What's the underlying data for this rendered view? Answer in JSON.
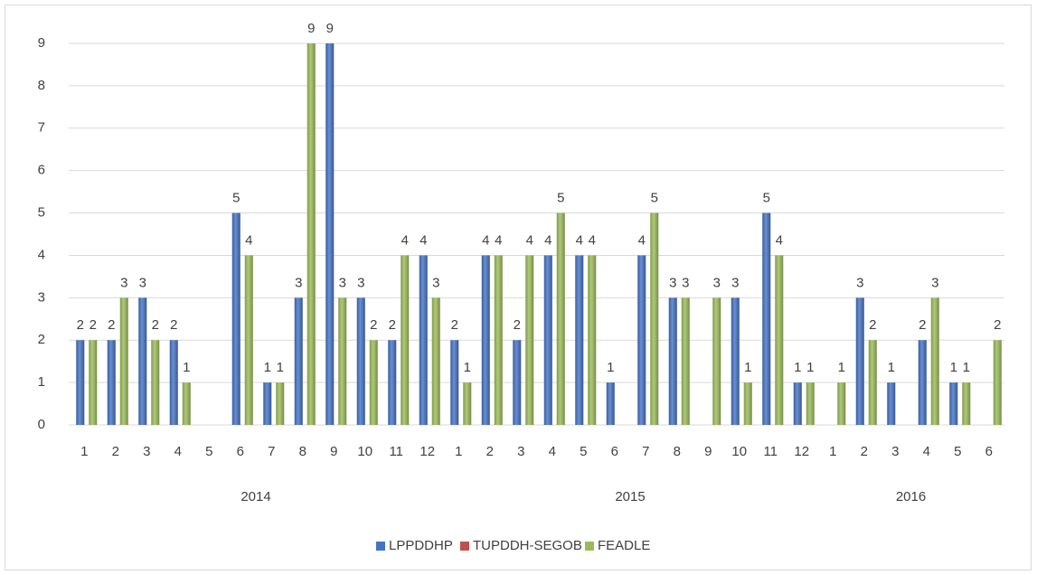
{
  "chart_data": {
    "type": "bar",
    "categories": [
      "1",
      "2",
      "3",
      "4",
      "5",
      "6",
      "7",
      "8",
      "9",
      "10",
      "11",
      "12",
      "1",
      "2",
      "3",
      "4",
      "5",
      "6",
      "7",
      "8",
      "9",
      "10",
      "11",
      "12",
      "1",
      "2",
      "3",
      "4",
      "5",
      "6"
    ],
    "x_groups": [
      "2014",
      "2015",
      "2016"
    ],
    "series": [
      {
        "name": "LPPDDHP",
        "color": "#4472c4",
        "values": [
          2,
          2,
          3,
          2,
          null,
          5,
          1,
          3,
          9,
          3,
          2,
          4,
          2,
          4,
          2,
          4,
          4,
          1,
          4,
          3,
          null,
          3,
          5,
          1,
          null,
          3,
          1,
          2,
          1,
          null
        ]
      },
      {
        "name": "TUPDDH-SEGOB",
        "color": "#c0504d",
        "values": [
          null,
          null,
          null,
          null,
          null,
          null,
          null,
          null,
          null,
          null,
          null,
          null,
          null,
          null,
          null,
          null,
          null,
          null,
          null,
          null,
          null,
          null,
          null,
          null,
          null,
          null,
          null,
          null,
          null,
          null
        ]
      },
      {
        "name": "FEADLE",
        "color": "#9bbb59",
        "values": [
          2,
          3,
          2,
          1,
          null,
          4,
          1,
          9,
          3,
          2,
          4,
          3,
          1,
          4,
          4,
          5,
          4,
          null,
          5,
          3,
          3,
          1,
          4,
          1,
          1,
          2,
          null,
          3,
          1,
          2
        ]
      }
    ],
    "ylim": [
      0,
      9
    ],
    "yticks": [
      0,
      1,
      2,
      3,
      4,
      5,
      6,
      7,
      8,
      9
    ],
    "grid": true,
    "legend": "bottom"
  }
}
